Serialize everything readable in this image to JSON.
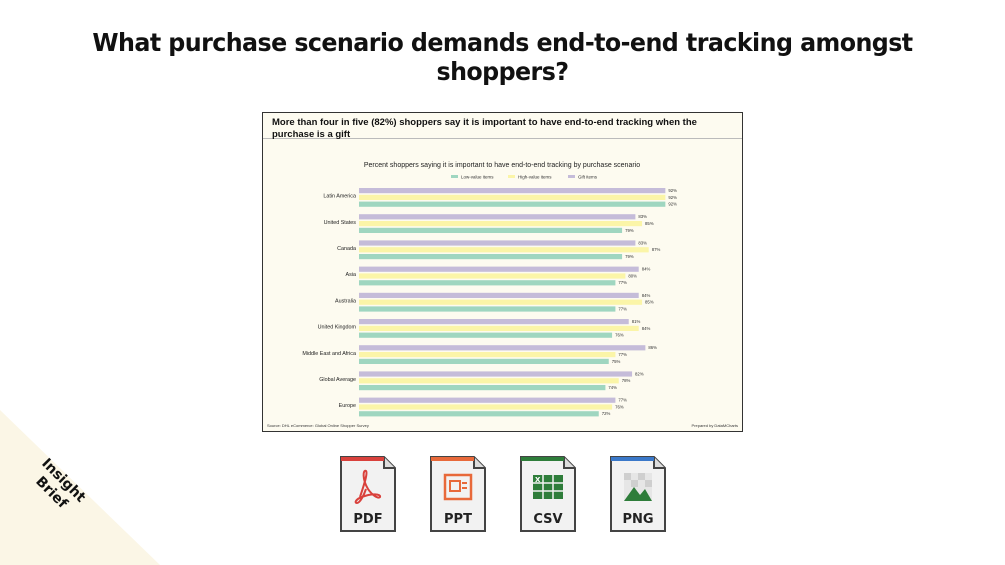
{
  "page": {
    "title": "What purchase scenario demands end-to-end tracking amongst shoppers?",
    "corner_label_line1": "Insight",
    "corner_label_line2": "Brief",
    "corner_color": "#fbf6e6"
  },
  "card": {
    "heading": "More than four in five (82%) shoppers say it is important to have end-to-end tracking when the purchase is a gift",
    "source": "Source: DHL eCommerce: Global Online Shopper Survey",
    "prepared_by": "Prepared by DataMCharts"
  },
  "chart_data": {
    "type": "bar",
    "orientation": "horizontal",
    "title": "Percent shoppers saying it is important to have end-to-end tracking by purchase scenario",
    "categories": [
      "Latin America",
      "United States",
      "Canada",
      "Asia",
      "Australia",
      "United Kingdom",
      "Middle East and Africa",
      "Global Average",
      "Europe"
    ],
    "series": [
      {
        "name": "Low-value items",
        "color": "#9fd6c0",
        "values": [
          92,
          79,
          79,
          77,
          77,
          76,
          75,
          74,
          72
        ]
      },
      {
        "name": "High-value items",
        "color": "#fbf5a8",
        "values": [
          92,
          85,
          87,
          80,
          85,
          84,
          77,
          78,
          76
        ]
      },
      {
        "name": "Gift items",
        "color": "#c5bcd9",
        "values": [
          92,
          83,
          83,
          84,
          84,
          81,
          86,
          82,
          77
        ]
      }
    ],
    "value_suffix": "%",
    "xlim": [
      0,
      100
    ],
    "legend_position": "top-center",
    "grid": false
  },
  "downloads": [
    {
      "label": "PDF",
      "icon": "pdf-icon",
      "color": "#d9413c"
    },
    {
      "label": "PPT",
      "icon": "ppt-icon",
      "color": "#e8693a"
    },
    {
      "label": "CSV",
      "icon": "csv-icon",
      "color": "#2e7d3a"
    },
    {
      "label": "PNG",
      "icon": "png-icon",
      "color": "#3a78c9"
    }
  ]
}
